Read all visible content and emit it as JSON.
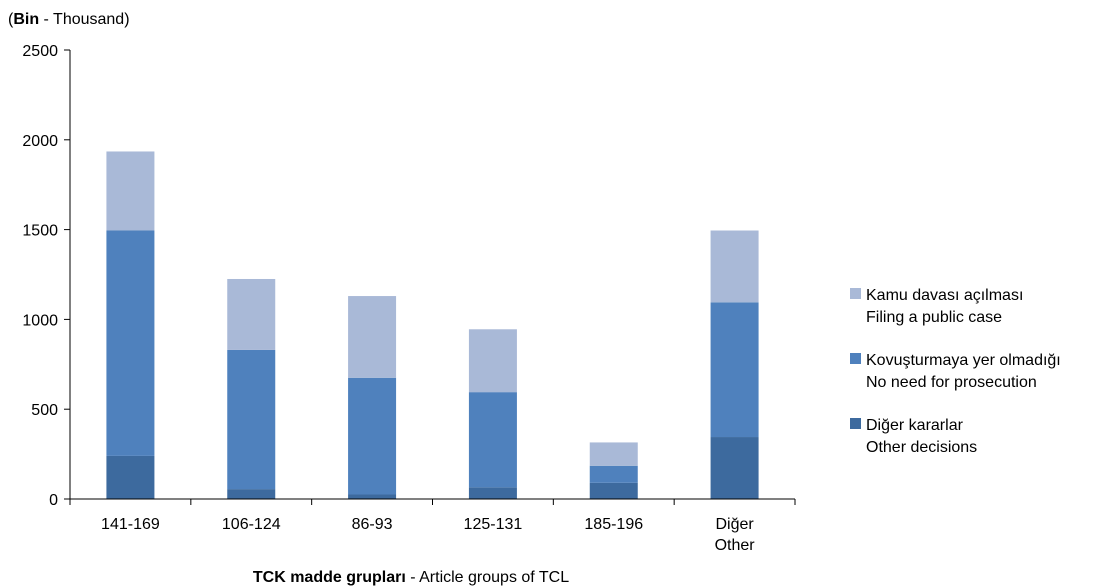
{
  "chart_data": {
    "type": "bar",
    "stacked": true,
    "unit_label": {
      "bold": "Bin",
      "rest": " - Thousand)",
      "prefix": "("
    },
    "xlabel": {
      "bold": "TCK madde grupları",
      "rest": " - Article groups of TCL"
    },
    "ylabel": "",
    "ylim": [
      0,
      2500
    ],
    "yticks": [
      0,
      500,
      1000,
      1500,
      2000,
      2500
    ],
    "grid": false,
    "legend_position": "right",
    "categories": [
      [
        "141-169"
      ],
      [
        "106-124"
      ],
      [
        "86-93"
      ],
      [
        "125-131"
      ],
      [
        "185-196"
      ],
      [
        "Diğer",
        "Other"
      ]
    ],
    "series": [
      {
        "name": [
          "Diğer kararlar",
          "Other decisions"
        ],
        "color": "#3d6a9e",
        "values": [
          240,
          55,
          25,
          65,
          90,
          345
        ]
      },
      {
        "name": [
          "Kovuşturmaya yer olmadığı",
          "No need for prosecution"
        ],
        "color": "#4f81bd",
        "values": [
          1255,
          775,
          650,
          530,
          95,
          750
        ]
      },
      {
        "name": [
          "Kamu davası açılması",
          "Filing a public case"
        ],
        "color": "#a9b9d7",
        "values": [
          440,
          395,
          455,
          350,
          130,
          400
        ]
      }
    ]
  }
}
